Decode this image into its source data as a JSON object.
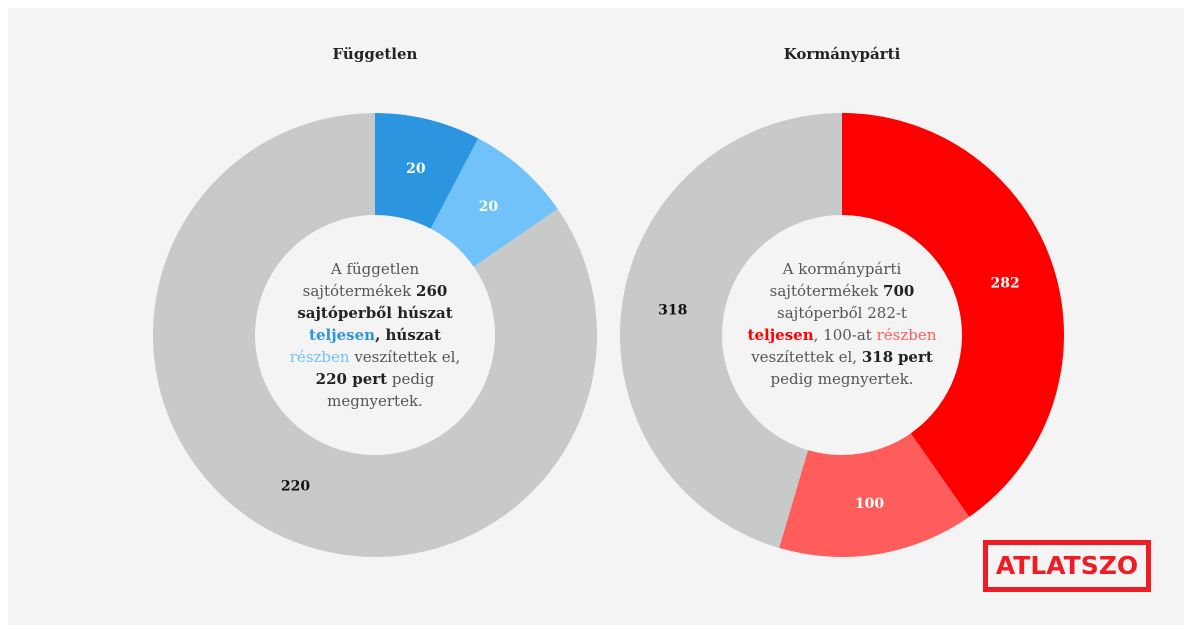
{
  "chart_data": [
    {
      "type": "donut",
      "title": "Független",
      "values": [
        20,
        20,
        220
      ],
      "colors": [
        "#2b95e0",
        "#72c2fa",
        "#c8c9c9"
      ],
      "label_colors": [
        "#ffffff",
        "#ffffff",
        "#111111"
      ],
      "center_text": [
        {
          "text": "A független sajtótermékek "
        },
        {
          "text": "260 sajtóperből húszat ",
          "bold": true
        },
        {
          "text": "teljesen",
          "bold": true,
          "color": "#2b95e0"
        },
        {
          "text": ", húszat ",
          "bold": true
        },
        {
          "text": "részben",
          "color": "#72c2fa"
        },
        {
          "text": " veszítettek el, "
        },
        {
          "text": "220 pert",
          "bold": true
        },
        {
          "text": " pedig megnyertek."
        }
      ]
    },
    {
      "type": "donut",
      "title": "Kormánypárti",
      "values": [
        282,
        100,
        318
      ],
      "colors": [
        "#ff0000",
        "#ff5c5c",
        "#c8c9c9"
      ],
      "label_colors": [
        "#ffffff",
        "#ffffff",
        "#111111"
      ],
      "center_text": [
        {
          "text": "A kormánypárti sajtótermékek "
        },
        {
          "text": "700",
          "bold": true
        },
        {
          "text": " sajtóperből 282-t "
        },
        {
          "text": "teljesen",
          "bold": true,
          "color": "#ff0000"
        },
        {
          "text": ", 100-at "
        },
        {
          "text": "részben",
          "color": "#ff5c5c"
        },
        {
          "text": " veszítettek el, "
        },
        {
          "text": "318",
          "bold": true
        },
        {
          "text": " "
        },
        {
          "text": "pert",
          "bold": true
        },
        {
          "text": " pedig megnyertek."
        }
      ]
    }
  ],
  "logo": "ATLATSZO"
}
